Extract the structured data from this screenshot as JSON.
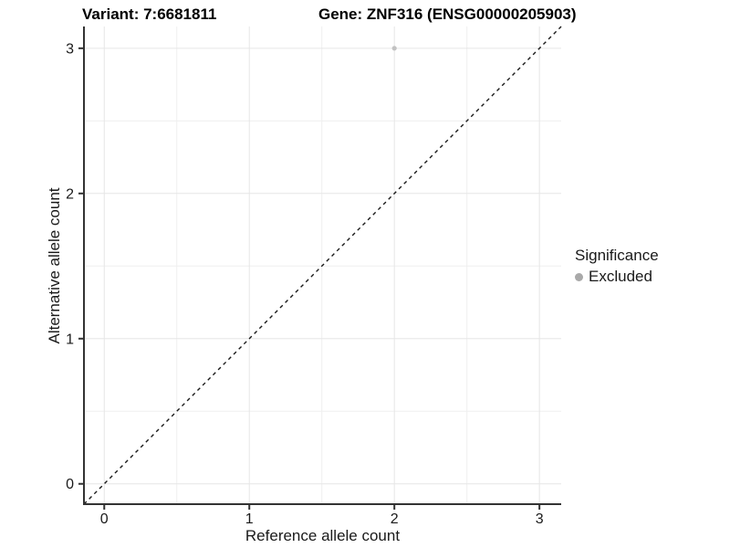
{
  "figure": {
    "title_left": "Variant: 7:6681811",
    "title_right": "Gene: ZNF316 (ENSG00000205903)"
  },
  "chart_data": {
    "type": "scatter",
    "title": "Variant: 7:6681811    Gene: ZNF316 (ENSG00000205903)",
    "xlabel": "Reference allele count",
    "ylabel": "Alternative allele count",
    "xlim": [
      -0.14,
      3.15
    ],
    "ylim": [
      -0.14,
      3.15
    ],
    "x_ticks": [
      0,
      1,
      2,
      3
    ],
    "y_ticks": [
      0,
      1,
      2,
      3
    ],
    "x_minor_ticks": [
      0.5,
      1.5,
      2.5
    ],
    "y_minor_ticks": [
      0.5,
      1.5,
      2.5
    ],
    "grid": true,
    "series": [
      {
        "name": "Excluded",
        "points": [
          {
            "x": 2,
            "y": 3
          }
        ],
        "color": "#c2c2c2"
      }
    ],
    "reference_line": {
      "type": "identity",
      "style": "dashed",
      "color": "#1a1a1a"
    },
    "legend": {
      "title": "Significance",
      "position": "right",
      "items": [
        {
          "label": "Excluded",
          "color": "#a9a9a9"
        }
      ]
    }
  },
  "colors": {
    "background": "#ffffff",
    "axis_line": "#333333",
    "major_grid": "#e6e6e6",
    "minor_grid": "#efefef",
    "tick_text": "#1a1a1a",
    "point": "#c2c2c2"
  }
}
